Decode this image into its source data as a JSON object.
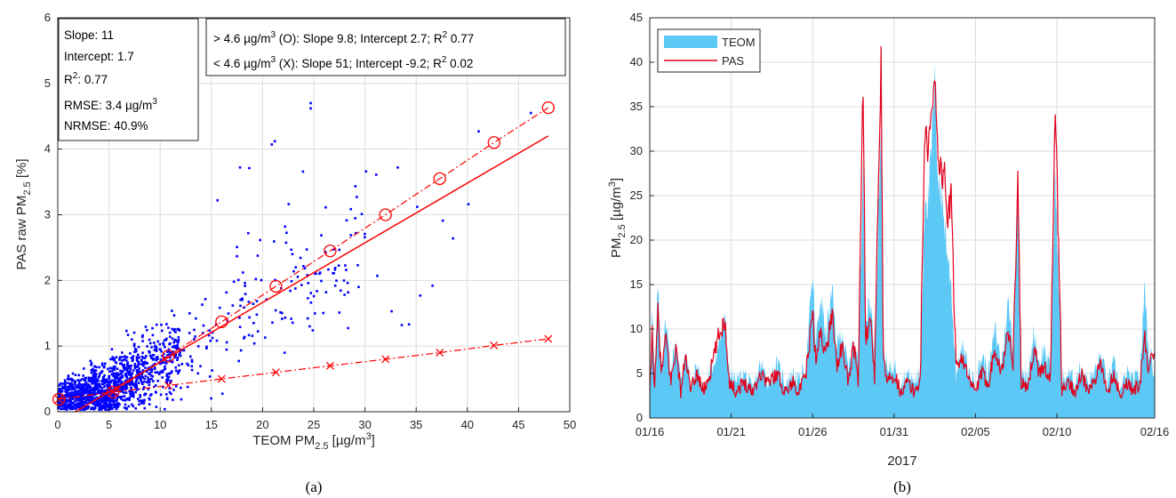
{
  "chart_data": [
    {
      "type": "scatter",
      "panel_label": "(a)",
      "xlabel_main": "TEOM PM",
      "xlabel_sub": "2.5",
      "xlabel_unit": " [µg/m",
      "xlabel_sup": "3",
      "xlabel_end": "]",
      "ylabel_main": "PAS raw PM",
      "ylabel_sub": "2.5",
      "ylabel_end": " [%]",
      "xlim": [
        0,
        50
      ],
      "ylim": [
        0,
        6
      ],
      "xticks": [
        "0",
        "5",
        "10",
        "15",
        "20",
        "25",
        "30",
        "35",
        "40",
        "45",
        "50"
      ],
      "yticks": [
        "0",
        "1",
        "2",
        "3",
        "4",
        "5",
        "6"
      ],
      "grid": true,
      "stats_box": {
        "slope": "Slope: 11",
        "intercept": "Intercept: 1.7",
        "r2_pre": "R",
        "r2_sup": "2",
        "r2_post": ": 0.77",
        "rmse_pre": "RMSE: 3.4 µg/m",
        "rmse_sup": "3",
        "nrmse": "NRMSE: 40.9%"
      },
      "fit_box": {
        "line1_pre": "> 4.6 µg/m",
        "line1_sup": "3",
        "line1_mid": " (O): Slope 9.8; Intercept 2.7; R",
        "line1_sup2": "2",
        "line1_end": " 0.77",
        "line2_pre": "< 4.6 µg/m",
        "line2_sup": "3",
        "line2_mid": " (X): Slope 51; Intercept -9.2; R",
        "line2_sup2": "2",
        "line2_end": " 0.02"
      },
      "points_color": "#0000ff",
      "fit_color": "#ff0000",
      "overall_fit": {
        "slope_pm_per_pct": 11,
        "intercept": 1.7,
        "x_range": [
          1.7,
          47.9
        ]
      },
      "high_fit_markers_O": [
        {
          "x": 0.1,
          "y": 0.19
        },
        {
          "x": 5.4,
          "y": 0.3
        },
        {
          "x": 10.8,
          "y": 0.85
        },
        {
          "x": 16.0,
          "y": 1.37
        },
        {
          "x": 21.3,
          "y": 1.91
        },
        {
          "x": 26.6,
          "y": 2.45
        },
        {
          "x": 32.0,
          "y": 3.0
        },
        {
          "x": 37.3,
          "y": 3.55
        },
        {
          "x": 42.6,
          "y": 4.1
        },
        {
          "x": 47.9,
          "y": 4.63
        }
      ],
      "low_fit_markers_X": [
        {
          "x": 0.1,
          "y": 0.19
        },
        {
          "x": 5.4,
          "y": 0.3
        },
        {
          "x": 10.8,
          "y": 0.4
        },
        {
          "x": 16.0,
          "y": 0.5
        },
        {
          "x": 21.3,
          "y": 0.6
        },
        {
          "x": 26.6,
          "y": 0.7
        },
        {
          "x": 32.0,
          "y": 0.8
        },
        {
          "x": 37.3,
          "y": 0.9
        },
        {
          "x": 42.6,
          "y": 1.01
        },
        {
          "x": 47.9,
          "y": 1.11
        }
      ],
      "scatter_outliers": [
        {
          "x": 24.7,
          "y": 4.7
        },
        {
          "x": 24.7,
          "y": 4.62
        },
        {
          "x": 21.2,
          "y": 4.12
        },
        {
          "x": 20.9,
          "y": 4.07
        },
        {
          "x": 17.8,
          "y": 3.72
        },
        {
          "x": 18.7,
          "y": 3.71
        },
        {
          "x": 33.2,
          "y": 3.72
        },
        {
          "x": 41.1,
          "y": 4.27
        },
        {
          "x": 46.2,
          "y": 4.55
        },
        {
          "x": 15.6,
          "y": 3.22
        },
        {
          "x": 30.1,
          "y": 3.66
        },
        {
          "x": 31.1,
          "y": 3.61
        },
        {
          "x": 35.1,
          "y": 3.12
        },
        {
          "x": 36.6,
          "y": 1.92
        },
        {
          "x": 33.6,
          "y": 1.32
        },
        {
          "x": 34.3,
          "y": 1.33
        },
        {
          "x": 35.4,
          "y": 1.77
        },
        {
          "x": 31.2,
          "y": 2.07
        },
        {
          "x": 27.1,
          "y": 1.92
        },
        {
          "x": 24.9,
          "y": 1.24
        },
        {
          "x": 24.6,
          "y": 1.3
        },
        {
          "x": 32.6,
          "y": 1.53
        },
        {
          "x": 38.6,
          "y": 2.64
        },
        {
          "x": 40.1,
          "y": 3.16
        },
        {
          "x": 37.6,
          "y": 2.91
        },
        {
          "x": 27.5,
          "y": 1.51
        },
        {
          "x": 26.2,
          "y": 1.82
        },
        {
          "x": 22.2,
          "y": 2.82
        },
        {
          "x": 18.6,
          "y": 2.72
        },
        {
          "x": 17.2,
          "y": 1.98
        },
        {
          "x": 29.2,
          "y": 3.27
        }
      ],
      "scatter_cluster_note": "dense cluster of ~1800 hourly points following the overall fit; generated procedurally"
    },
    {
      "type": "area",
      "panel_label": "(b)",
      "xlabel": "2017",
      "ylabel_main": "PM",
      "ylabel_sub": "2.5",
      "ylabel_unit": " [µg/m",
      "ylabel_sup": "3",
      "ylabel_end": "]",
      "xlim_days": [
        0,
        31
      ],
      "ylim": [
        0,
        45
      ],
      "xticks": [
        "01/16",
        "01/21",
        "01/26",
        "01/31",
        "02/05",
        "02/10",
        "02/16"
      ],
      "xtick_days": [
        0,
        5,
        10,
        15,
        20,
        25,
        31
      ],
      "yticks": [
        "0",
        "5",
        "10",
        "15",
        "20",
        "25",
        "30",
        "35",
        "40",
        "45"
      ],
      "grid": true,
      "legend": {
        "position": "top-left"
      },
      "series": [
        {
          "name": "TEOM",
          "style": "area",
          "color": "#5bc8f5",
          "keypoints": [
            [
              0,
              3
            ],
            [
              0.15,
              12
            ],
            [
              0.3,
              4
            ],
            [
              0.5,
              15
            ],
            [
              0.7,
              6
            ],
            [
              1.0,
              11
            ],
            [
              1.3,
              5
            ],
            [
              1.6,
              9
            ],
            [
              1.9,
              4
            ],
            [
              2.2,
              8
            ],
            [
              2.5,
              3
            ],
            [
              2.9,
              6
            ],
            [
              3.3,
              3
            ],
            [
              3.7,
              5
            ],
            [
              4.2,
              8
            ],
            [
              4.6,
              11
            ],
            [
              4.9,
              5
            ],
            [
              5.3,
              4
            ],
            [
              5.8,
              5
            ],
            [
              6.3,
              3
            ],
            [
              6.8,
              6
            ],
            [
              7.3,
              4
            ],
            [
              7.8,
              6
            ],
            [
              8.3,
              4
            ],
            [
              8.8,
              5
            ],
            [
              9.2,
              4
            ],
            [
              9.6,
              6
            ],
            [
              10.0,
              16
            ],
            [
              10.2,
              8
            ],
            [
              10.5,
              14
            ],
            [
              10.8,
              9
            ],
            [
              11.2,
              14
            ],
            [
              11.5,
              8
            ],
            [
              11.8,
              10
            ],
            [
              12.2,
              5
            ],
            [
              12.5,
              9
            ],
            [
              12.8,
              6
            ],
            [
              13.1,
              30
            ],
            [
              13.25,
              10
            ],
            [
              13.5,
              14
            ],
            [
              13.8,
              7
            ],
            [
              14.2,
              34
            ],
            [
              14.35,
              8
            ],
            [
              14.6,
              5
            ],
            [
              15.0,
              6
            ],
            [
              15.4,
              4
            ],
            [
              15.8,
              5
            ],
            [
              16.2,
              4
            ],
            [
              16.6,
              5
            ],
            [
              16.9,
              26
            ],
            [
              17.1,
              24
            ],
            [
              17.3,
              30
            ],
            [
              17.5,
              37
            ],
            [
              17.7,
              28
            ],
            [
              17.9,
              25
            ],
            [
              18.1,
              22
            ],
            [
              18.3,
              18
            ],
            [
              18.5,
              15
            ],
            [
              18.8,
              5
            ],
            [
              19.2,
              8
            ],
            [
              19.6,
              5
            ],
            [
              20.0,
              4
            ],
            [
              20.4,
              7
            ],
            [
              20.8,
              5
            ],
            [
              21.2,
              10
            ],
            [
              21.6,
              6
            ],
            [
              22.0,
              13
            ],
            [
              22.3,
              8
            ],
            [
              22.6,
              25
            ],
            [
              22.8,
              6
            ],
            [
              23.2,
              4
            ],
            [
              23.6,
              10
            ],
            [
              23.9,
              6
            ],
            [
              24.2,
              8
            ],
            [
              24.6,
              5
            ],
            [
              24.9,
              28
            ],
            [
              25.1,
              15
            ],
            [
              25.3,
              4
            ],
            [
              25.7,
              5
            ],
            [
              26.1,
              4
            ],
            [
              26.5,
              6
            ],
            [
              26.9,
              4
            ],
            [
              27.3,
              5
            ],
            [
              27.7,
              7
            ],
            [
              28.1,
              4
            ],
            [
              28.5,
              6
            ],
            [
              28.9,
              3
            ],
            [
              29.3,
              5
            ],
            [
              29.7,
              4
            ],
            [
              30.1,
              5
            ],
            [
              30.4,
              15
            ],
            [
              30.6,
              8
            ],
            [
              31.0,
              5
            ]
          ]
        },
        {
          "name": "PAS",
          "style": "line",
          "color": "#e3001b",
          "keypoints": [
            [
              0,
              2.5
            ],
            [
              0.15,
              10
            ],
            [
              0.3,
              3
            ],
            [
              0.5,
              12
            ],
            [
              0.7,
              5
            ],
            [
              1.0,
              9
            ],
            [
              1.3,
              4
            ],
            [
              1.6,
              8
            ],
            [
              1.9,
              3
            ],
            [
              2.2,
              7
            ],
            [
              2.5,
              3
            ],
            [
              2.9,
              5
            ],
            [
              3.3,
              3
            ],
            [
              3.7,
              5
            ],
            [
              4.2,
              9
            ],
            [
              4.6,
              11
            ],
            [
              4.9,
              4
            ],
            [
              5.3,
              3
            ],
            [
              5.8,
              4
            ],
            [
              6.3,
              3
            ],
            [
              6.8,
              5
            ],
            [
              7.3,
              4
            ],
            [
              7.8,
              5
            ],
            [
              8.3,
              3
            ],
            [
              8.8,
              4
            ],
            [
              9.2,
              3
            ],
            [
              9.6,
              5
            ],
            [
              10.0,
              12
            ],
            [
              10.2,
              6
            ],
            [
              10.5,
              10
            ],
            [
              10.8,
              7
            ],
            [
              11.2,
              12
            ],
            [
              11.5,
              6
            ],
            [
              11.8,
              8
            ],
            [
              12.2,
              4
            ],
            [
              12.5,
              8
            ],
            [
              12.8,
              5
            ],
            [
              13.1,
              38
            ],
            [
              13.25,
              8
            ],
            [
              13.5,
              12
            ],
            [
              13.8,
              5
            ],
            [
              14.2,
              40
            ],
            [
              14.35,
              6
            ],
            [
              14.6,
              4
            ],
            [
              15.0,
              5
            ],
            [
              15.4,
              3
            ],
            [
              15.8,
              4
            ],
            [
              16.2,
              3
            ],
            [
              16.6,
              4
            ],
            [
              16.9,
              33
            ],
            [
              17.1,
              30
            ],
            [
              17.3,
              34
            ],
            [
              17.5,
              39.5
            ],
            [
              17.7,
              30
            ],
            [
              17.9,
              27
            ],
            [
              18.1,
              28
            ],
            [
              18.3,
              22
            ],
            [
              18.5,
              25
            ],
            [
              18.8,
              6
            ],
            [
              19.2,
              7
            ],
            [
              19.6,
              4
            ],
            [
              20.0,
              3
            ],
            [
              20.4,
              5
            ],
            [
              20.8,
              4
            ],
            [
              21.2,
              8
            ],
            [
              21.6,
              5
            ],
            [
              22.0,
              10
            ],
            [
              22.3,
              6
            ],
            [
              22.6,
              27
            ],
            [
              22.8,
              4
            ],
            [
              23.2,
              3
            ],
            [
              23.6,
              8
            ],
            [
              23.9,
              5
            ],
            [
              24.2,
              6
            ],
            [
              24.6,
              4
            ],
            [
              24.9,
              35
            ],
            [
              25.1,
              20
            ],
            [
              25.3,
              3
            ],
            [
              25.7,
              4
            ],
            [
              26.1,
              3
            ],
            [
              26.5,
              5
            ],
            [
              26.9,
              3
            ],
            [
              27.3,
              4
            ],
            [
              27.7,
              6
            ],
            [
              28.1,
              3
            ],
            [
              28.5,
              5
            ],
            [
              28.9,
              2.5
            ],
            [
              29.3,
              4
            ],
            [
              29.7,
              3
            ],
            [
              30.1,
              4
            ],
            [
              30.4,
              9
            ],
            [
              30.6,
              6
            ],
            [
              31.0,
              7
            ]
          ]
        }
      ]
    }
  ]
}
